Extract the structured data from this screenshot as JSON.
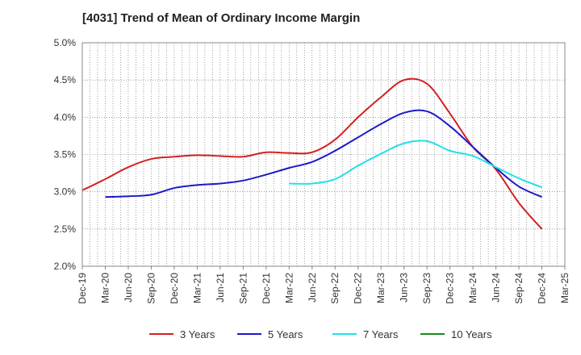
{
  "chart_data": {
    "type": "line",
    "title": "[4031]  Trend of Mean of Ordinary Income Margin",
    "x_categories": [
      "Dec-19",
      "Mar-20",
      "Jun-20",
      "Sep-20",
      "Dec-20",
      "Mar-21",
      "Jun-21",
      "Sep-21",
      "Dec-21",
      "Mar-22",
      "Jun-22",
      "Sep-22",
      "Dec-22",
      "Mar-23",
      "Jun-23",
      "Sep-23",
      "Dec-23",
      "Mar-24",
      "Jun-24",
      "Sep-24",
      "Dec-24",
      "Mar-25"
    ],
    "y_ticks": [
      "2.0%",
      "2.5%",
      "3.0%",
      "3.5%",
      "4.0%",
      "4.5%",
      "5.0%"
    ],
    "ylim": [
      2.0,
      5.0
    ],
    "grid": true,
    "legend_position": "bottom",
    "series": [
      {
        "name": "3 Years",
        "color": "#d42020",
        "values": [
          3.02,
          3.17,
          3.33,
          3.44,
          3.47,
          3.49,
          3.48,
          3.47,
          3.53,
          3.52,
          3.53,
          3.7,
          4.0,
          4.27,
          4.5,
          4.45,
          4.05,
          3.6,
          3.3,
          2.85,
          2.5,
          null
        ]
      },
      {
        "name": "5 Years",
        "color": "#1a1ac8",
        "values": [
          null,
          2.93,
          2.94,
          2.96,
          3.05,
          3.09,
          3.11,
          3.15,
          3.23,
          3.32,
          3.4,
          3.55,
          3.73,
          3.91,
          4.06,
          4.08,
          3.88,
          3.6,
          3.32,
          3.07,
          2.93,
          null
        ]
      },
      {
        "name": "7 Years",
        "color": "#22e0e8",
        "values": [
          null,
          null,
          null,
          null,
          null,
          null,
          null,
          null,
          null,
          3.11,
          3.11,
          3.17,
          3.35,
          3.51,
          3.65,
          3.68,
          3.55,
          3.48,
          3.33,
          3.18,
          3.06,
          null
        ]
      },
      {
        "name": "10 Years",
        "color": "#1a8a1a",
        "values": [
          null,
          null,
          null,
          null,
          null,
          null,
          null,
          null,
          null,
          null,
          null,
          null,
          null,
          null,
          null,
          null,
          null,
          null,
          null,
          null,
          null,
          null
        ]
      }
    ]
  }
}
